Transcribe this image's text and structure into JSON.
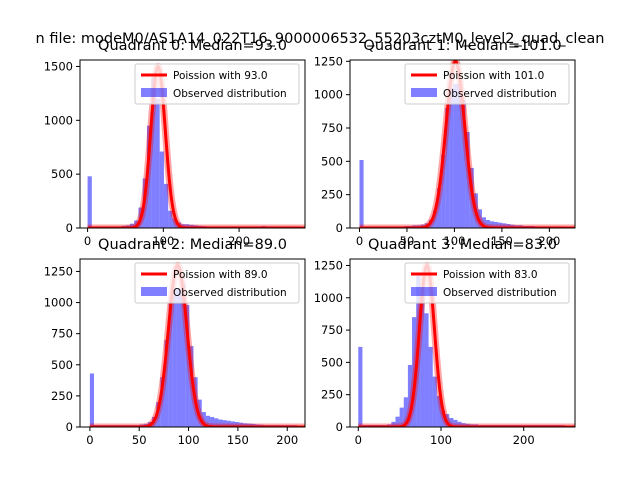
{
  "figure": {
    "suptitle": "n file: modeM0/AS1A14_022T16_9000006532_55203cztM0_level2_quad_clean",
    "hist_color": "#0000ff",
    "hist_alpha": 0.5,
    "curve_color": "#ff0000",
    "curve_glow_alpha": 0.35
  },
  "chart_data": [
    {
      "type": "bar",
      "title": "Quadrant 0: Median=93.0",
      "xlim": [
        -10,
        287
      ],
      "ylim": [
        0,
        1560
      ],
      "xticks": [
        0,
        100,
        200
      ],
      "yticks": [
        0,
        500,
        1000,
        1500
      ],
      "grid": false,
      "legend_position": "top-right",
      "series": [
        {
          "name": "Poission with 93.0",
          "kind": "line",
          "mean": 93.0,
          "peak": 1500,
          "sigma": 9.6
        },
        {
          "name": "Observed distribution",
          "kind": "histogram",
          "bin_width": 5.6,
          "x": [
            0,
            5.6,
            11.2,
            16.8,
            22.4,
            28,
            33.6,
            39.2,
            44.8,
            50.4,
            56,
            61.6,
            67.2,
            72.8,
            78.4,
            84,
            89.6,
            95.2,
            100.8,
            106.4,
            112,
            117.6,
            123.2,
            128.8,
            134.4,
            140,
            145.6,
            151.2,
            156.8,
            162.4,
            168,
            173.6,
            179.2,
            184.8,
            190.4,
            196,
            201.6,
            207.2,
            212.8,
            218.4,
            224,
            229.6,
            235.2,
            240.8,
            246.4,
            252,
            257.6,
            263.2,
            268.8,
            274.4
          ],
          "values": [
            480,
            15,
            15,
            15,
            15,
            15,
            15,
            15,
            20,
            25,
            40,
            70,
            190,
            460,
            950,
            1400,
            1200,
            710,
            410,
            160,
            90,
            50,
            35,
            35,
            30,
            25,
            20,
            18,
            15,
            15,
            15,
            15,
            15,
            15,
            15,
            15,
            15,
            15,
            15,
            15,
            15,
            18,
            15,
            15,
            15,
            15,
            15,
            15,
            15,
            15
          ]
        }
      ]
    },
    {
      "type": "bar",
      "title": "Quadrant 1: Median=101.0",
      "xlim": [
        -10,
        227
      ],
      "ylim": [
        0,
        1260
      ],
      "xticks": [
        0,
        50,
        100,
        150,
        200
      ],
      "yticks": [
        0,
        250,
        500,
        750,
        1000,
        1250
      ],
      "grid": false,
      "legend_position": "top-right",
      "series": [
        {
          "name": "Poission with 101.0",
          "kind": "line",
          "mean": 101.0,
          "peak": 1250,
          "sigma": 10.0
        },
        {
          "name": "Observed distribution",
          "kind": "histogram",
          "bin_width": 4.3,
          "x": [
            0,
            4.3,
            8.6,
            12.9,
            17.2,
            21.5,
            25.8,
            30.1,
            34.4,
            38.7,
            43,
            47.3,
            51.6,
            55.9,
            60.2,
            64.5,
            68.8,
            73.1,
            77.4,
            81.7,
            86,
            90.3,
            94.6,
            98.9,
            103.2,
            107.5,
            111.8,
            116.1,
            120.4,
            124.7,
            129,
            133.3,
            137.6,
            141.9,
            146.2,
            150.5,
            154.8,
            159.1,
            163.4,
            167.7,
            172,
            176.3,
            180.6,
            184.9,
            189.2,
            193.5,
            197.8,
            202.1,
            206.4,
            210.7
          ],
          "values": [
            510,
            12,
            12,
            12,
            12,
            12,
            12,
            12,
            12,
            12,
            12,
            15,
            15,
            20,
            20,
            25,
            35,
            60,
            130,
            300,
            550,
            900,
            1050,
            1080,
            1080,
            960,
            720,
            450,
            260,
            140,
            80,
            60,
            50,
            45,
            40,
            35,
            30,
            25,
            20,
            20,
            15,
            15,
            15,
            12,
            12,
            12,
            12,
            12,
            12,
            12
          ]
        }
      ]
    },
    {
      "type": "bar",
      "title": "Quadrant 2: Median=89.0",
      "xlim": [
        -10,
        218
      ],
      "ylim": [
        0,
        1350
      ],
      "xticks": [
        0,
        50,
        100,
        150,
        200
      ],
      "yticks": [
        0,
        250,
        500,
        750,
        1000,
        1250
      ],
      "grid": false,
      "legend_position": "top-right",
      "series": [
        {
          "name": "Poission with 89.0",
          "kind": "line",
          "mean": 89.0,
          "peak": 1300,
          "sigma": 9.4
        },
        {
          "name": "Observed distribution",
          "kind": "histogram",
          "bin_width": 4.2,
          "x": [
            0,
            4.2,
            8.4,
            12.6,
            16.8,
            21,
            25.2,
            29.4,
            33.6,
            37.8,
            42,
            46.2,
            50.4,
            54.6,
            58.8,
            63,
            67.2,
            71.4,
            75.6,
            79.8,
            84,
            88.2,
            92.4,
            96.6,
            100.8,
            105,
            109.2,
            113.4,
            117.6,
            121.8,
            126,
            130.2,
            134.4,
            138.6,
            142.8,
            147,
            151.2,
            155.4,
            159.6,
            163.8,
            168,
            172.2,
            176.4,
            180.6,
            184.8,
            189,
            193.2,
            197.4,
            201.6,
            205.8
          ],
          "values": [
            430,
            15,
            15,
            15,
            15,
            15,
            15,
            15,
            15,
            15,
            15,
            15,
            20,
            25,
            40,
            80,
            200,
            400,
            700,
            1000,
            1110,
            1110,
            1150,
            980,
            650,
            400,
            220,
            120,
            90,
            80,
            70,
            60,
            55,
            50,
            45,
            40,
            35,
            30,
            28,
            25,
            20,
            18,
            15,
            15,
            15,
            15,
            15,
            15,
            15,
            15
          ]
        }
      ]
    },
    {
      "type": "bar",
      "title": "Quadrant 3: Median=83.0",
      "xlim": [
        -10,
        262
      ],
      "ylim": [
        0,
        1300
      ],
      "xticks": [
        0,
        100,
        200
      ],
      "yticks": [
        0,
        250,
        500,
        750,
        1000,
        1250
      ],
      "grid": false,
      "legend_position": "top-right",
      "series": [
        {
          "name": "Poission with 83.0",
          "kind": "line",
          "mean": 83.0,
          "peak": 1250,
          "sigma": 9.1
        },
        {
          "name": "Observed distribution",
          "kind": "histogram",
          "bin_width": 5.0,
          "x": [
            0,
            5,
            10,
            15,
            20,
            25,
            30,
            35,
            40,
            45,
            50,
            55,
            60,
            65,
            70,
            75,
            80,
            85,
            90,
            95,
            100,
            105,
            110,
            115,
            120,
            125,
            130,
            135,
            140,
            145,
            150,
            155,
            160,
            165,
            170,
            175,
            180,
            185,
            190,
            195,
            200,
            205,
            210,
            215,
            220,
            225,
            230,
            235,
            240,
            245
          ],
          "values": [
            620,
            15,
            15,
            15,
            15,
            15,
            15,
            20,
            40,
            80,
            150,
            230,
            480,
            850,
            1170,
            1030,
            880,
            620,
            390,
            240,
            130,
            100,
            70,
            55,
            40,
            30,
            25,
            20,
            20,
            15,
            15,
            15,
            15,
            15,
            15,
            15,
            15,
            15,
            15,
            15,
            15,
            15,
            15,
            15,
            15,
            15,
            15,
            15,
            15,
            15
          ]
        }
      ]
    }
  ]
}
